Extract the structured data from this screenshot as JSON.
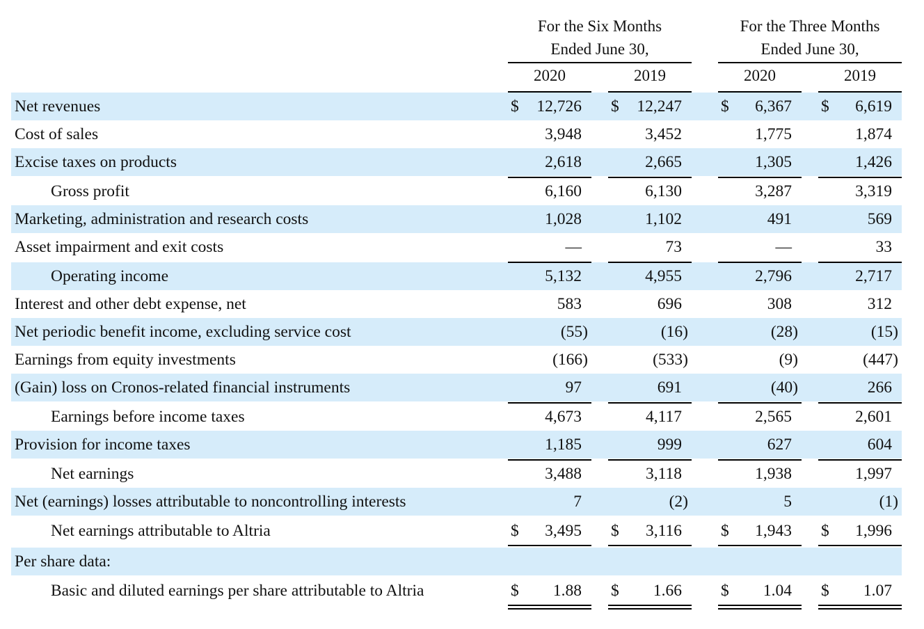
{
  "header": {
    "six_months_line1": "For the Six Months",
    "six_months_line2": "Ended June 30,",
    "three_months_line1": "For the Three Months",
    "three_months_line2": "Ended June 30,",
    "years": [
      "2020",
      "2019",
      "2020",
      "2019"
    ]
  },
  "currency_symbol": "$",
  "rows": [
    {
      "label": "Net revenues",
      "values": [
        "12,726",
        "12,247",
        "6,367",
        "6,619"
      ]
    },
    {
      "label": "Cost of sales",
      "values": [
        "3,948",
        "3,452",
        "1,775",
        "1,874"
      ]
    },
    {
      "label": "Excise taxes on products",
      "values": [
        "2,618",
        "2,665",
        "1,305",
        "1,426"
      ]
    },
    {
      "label": "Gross profit",
      "values": [
        "6,160",
        "6,130",
        "3,287",
        "3,319"
      ]
    },
    {
      "label": "Marketing, administration and research costs",
      "values": [
        "1,028",
        "1,102",
        "491",
        "569"
      ]
    },
    {
      "label": "Asset impairment and exit costs",
      "values": [
        "—",
        "73",
        "—",
        "33"
      ]
    },
    {
      "label": "Operating income",
      "values": [
        "5,132",
        "4,955",
        "2,796",
        "2,717"
      ]
    },
    {
      "label": "Interest and other debt expense, net",
      "values": [
        "583",
        "696",
        "308",
        "312"
      ]
    },
    {
      "label": "Net periodic benefit income, excluding service cost",
      "values": [
        "(55)",
        "(16)",
        "(28)",
        "(15)"
      ]
    },
    {
      "label": "Earnings from equity investments",
      "values": [
        "(166)",
        "(533)",
        "(9)",
        "(447)"
      ]
    },
    {
      "label": "(Gain) loss on Cronos-related financial instruments",
      "values": [
        "97",
        "691",
        "(40)",
        "266"
      ]
    },
    {
      "label": "Earnings before income taxes",
      "values": [
        "4,673",
        "4,117",
        "2,565",
        "2,601"
      ]
    },
    {
      "label": "Provision for income taxes",
      "values": [
        "1,185",
        "999",
        "627",
        "604"
      ]
    },
    {
      "label": "Net earnings",
      "values": [
        "3,488",
        "3,118",
        "1,938",
        "1,997"
      ]
    },
    {
      "label": "Net (earnings) losses attributable to noncontrolling interests",
      "values": [
        "7",
        "(2)",
        "5",
        "(1)"
      ]
    },
    {
      "label": "Net earnings attributable to Altria",
      "values": [
        "3,495",
        "3,116",
        "1,943",
        "1,996"
      ]
    },
    {
      "label": "Per share data:",
      "values": [
        "",
        "",
        "",
        ""
      ]
    },
    {
      "label": "Basic and diluted earnings per share attributable to Altria",
      "values": [
        "1.88",
        "1.66",
        "1.04",
        "1.07"
      ]
    }
  ]
}
